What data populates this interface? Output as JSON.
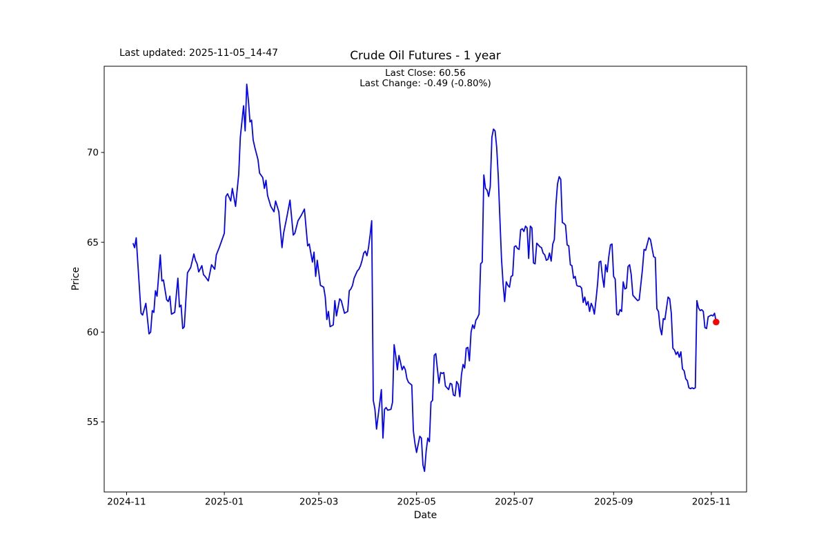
{
  "figure": {
    "last_updated_text": "Last updated: 2025-11-05_14-47",
    "title": "Crude Oil Futures - 1 year",
    "annotation_line1": "Last Close: 60.56",
    "annotation_line2": "Last Change: -0.49 (-0.80%)"
  },
  "chart_data": {
    "type": "line",
    "title": "Crude Oil Futures - 1 year",
    "xlabel": "Date",
    "ylabel": "Price",
    "last_close": 60.56,
    "last_change": -0.49,
    "last_change_pct": "-0.80%",
    "line_color": "#0000ff",
    "last_point_color": "#ff0000",
    "axis_color": "#000000",
    "grid": false,
    "legend": false,
    "x_unit": "days since 2024-11-01",
    "x_domain": [
      -14,
      387
    ],
    "y_domain": [
      51.1,
      74.8
    ],
    "x_ticks": [
      {
        "day": 0,
        "label": "2024-11"
      },
      {
        "day": 61,
        "label": "2025-01"
      },
      {
        "day": 120,
        "label": "2025-03"
      },
      {
        "day": 181,
        "label": "2025-05"
      },
      {
        "day": 242,
        "label": "2025-07"
      },
      {
        "day": 304,
        "label": "2025-09"
      },
      {
        "day": 365,
        "label": "2025-11"
      }
    ],
    "y_ticks": [
      55,
      60,
      65,
      70
    ],
    "last_point": [
      368,
      60.56
    ],
    "series": [
      {
        "name": "Crude Oil Futures",
        "color": "#0000ff",
        "points": [
          [
            4,
            64.95
          ],
          [
            5,
            64.7
          ],
          [
            6,
            65.25
          ],
          [
            9,
            61.05
          ],
          [
            10,
            60.95
          ],
          [
            12,
            61.6
          ],
          [
            14,
            59.9
          ],
          [
            15,
            60.0
          ],
          [
            16,
            61.2
          ],
          [
            17,
            61.1
          ],
          [
            18,
            62.3
          ],
          [
            19,
            62.0
          ],
          [
            21,
            64.3
          ],
          [
            22,
            62.85
          ],
          [
            23,
            62.9
          ],
          [
            25,
            61.8
          ],
          [
            26,
            61.7
          ],
          [
            27,
            62.0
          ],
          [
            28,
            61.0
          ],
          [
            30,
            61.1
          ],
          [
            32,
            63.0
          ],
          [
            33,
            61.4
          ],
          [
            34,
            61.5
          ],
          [
            35,
            60.2
          ],
          [
            36,
            60.3
          ],
          [
            38,
            63.3
          ],
          [
            40,
            63.6
          ],
          [
            42,
            64.35
          ],
          [
            43,
            64.0
          ],
          [
            44,
            63.8
          ],
          [
            45,
            63.35
          ],
          [
            47,
            63.7
          ],
          [
            48,
            63.2
          ],
          [
            49,
            63.1
          ],
          [
            51,
            62.85
          ],
          [
            53,
            63.75
          ],
          [
            55,
            63.5
          ],
          [
            56,
            64.3
          ],
          [
            58,
            64.75
          ],
          [
            59,
            65.0
          ],
          [
            61,
            65.5
          ],
          [
            62,
            67.55
          ],
          [
            63,
            67.7
          ],
          [
            65,
            67.3
          ],
          [
            66,
            68.0
          ],
          [
            68,
            67.0
          ],
          [
            70,
            68.8
          ],
          [
            71,
            70.85
          ],
          [
            73,
            72.6
          ],
          [
            74,
            71.2
          ],
          [
            75,
            73.8
          ],
          [
            76,
            72.9
          ],
          [
            77,
            71.7
          ],
          [
            78,
            71.8
          ],
          [
            79,
            70.7
          ],
          [
            80,
            70.3
          ],
          [
            82,
            69.6
          ],
          [
            83,
            68.85
          ],
          [
            85,
            68.6
          ],
          [
            86,
            68.0
          ],
          [
            87,
            68.45
          ],
          [
            88,
            67.6
          ],
          [
            90,
            67.0
          ],
          [
            92,
            66.7
          ],
          [
            93,
            67.3
          ],
          [
            95,
            66.7
          ],
          [
            97,
            64.7
          ],
          [
            98,
            65.5
          ],
          [
            100,
            66.4
          ],
          [
            102,
            67.35
          ],
          [
            104,
            65.4
          ],
          [
            105,
            65.5
          ],
          [
            107,
            66.2
          ],
          [
            109,
            66.5
          ],
          [
            111,
            66.85
          ],
          [
            113,
            64.8
          ],
          [
            114,
            64.9
          ],
          [
            116,
            63.9
          ],
          [
            117,
            64.45
          ],
          [
            118,
            63.1
          ],
          [
            119,
            64.0
          ],
          [
            121,
            62.6
          ],
          [
            123,
            62.5
          ],
          [
            124,
            61.95
          ],
          [
            125,
            60.7
          ],
          [
            126,
            61.15
          ],
          [
            127,
            60.3
          ],
          [
            129,
            60.4
          ],
          [
            130,
            61.75
          ],
          [
            131,
            60.9
          ],
          [
            133,
            61.85
          ],
          [
            134,
            61.75
          ],
          [
            136,
            61.05
          ],
          [
            138,
            61.15
          ],
          [
            139,
            62.3
          ],
          [
            140,
            62.4
          ],
          [
            141,
            62.6
          ],
          [
            142,
            63.0
          ],
          [
            144,
            63.4
          ],
          [
            145,
            63.5
          ],
          [
            146,
            63.7
          ],
          [
            147,
            64.0
          ],
          [
            148,
            64.4
          ],
          [
            149,
            64.5
          ],
          [
            150,
            64.25
          ],
          [
            151,
            64.7
          ],
          [
            152,
            65.4
          ],
          [
            153,
            66.2
          ],
          [
            154,
            56.2
          ],
          [
            155,
            55.7
          ],
          [
            156,
            54.6
          ],
          [
            159,
            56.8
          ],
          [
            160,
            54.1
          ],
          [
            161,
            55.7
          ],
          [
            162,
            55.8
          ],
          [
            163,
            55.65
          ],
          [
            165,
            55.7
          ],
          [
            166,
            56.1
          ],
          [
            167,
            59.3
          ],
          [
            168,
            58.7
          ],
          [
            169,
            57.9
          ],
          [
            170,
            58.7
          ],
          [
            172,
            57.9
          ],
          [
            173,
            58.1
          ],
          [
            174,
            57.9
          ],
          [
            175,
            57.4
          ],
          [
            176,
            57.2
          ],
          [
            178,
            57.05
          ],
          [
            179,
            54.5
          ],
          [
            180,
            53.8
          ],
          [
            181,
            53.3
          ],
          [
            183,
            54.2
          ],
          [
            184,
            54.1
          ],
          [
            185,
            52.6
          ],
          [
            186,
            52.25
          ],
          [
            187,
            53.4
          ],
          [
            188,
            54.1
          ],
          [
            189,
            53.9
          ],
          [
            190,
            56.1
          ],
          [
            191,
            56.2
          ],
          [
            192,
            58.7
          ],
          [
            193,
            58.8
          ],
          [
            194,
            57.95
          ],
          [
            195,
            57.15
          ],
          [
            196,
            57.75
          ],
          [
            197,
            57.7
          ],
          [
            198,
            57.75
          ],
          [
            199,
            57.0
          ],
          [
            200,
            56.9
          ],
          [
            201,
            56.8
          ],
          [
            202,
            57.15
          ],
          [
            203,
            57.1
          ],
          [
            204,
            56.5
          ],
          [
            205,
            56.45
          ],
          [
            206,
            57.25
          ],
          [
            207,
            57.1
          ],
          [
            208,
            56.4
          ],
          [
            209,
            57.6
          ],
          [
            210,
            58.2
          ],
          [
            211,
            58.0
          ],
          [
            212,
            59.1
          ],
          [
            213,
            59.15
          ],
          [
            214,
            58.4
          ],
          [
            215,
            60.0
          ],
          [
            216,
            60.4
          ],
          [
            217,
            60.2
          ],
          [
            218,
            60.65
          ],
          [
            219,
            60.8
          ],
          [
            220,
            61.0
          ],
          [
            221,
            63.8
          ],
          [
            222,
            63.9
          ],
          [
            223,
            68.75
          ],
          [
            224,
            68.0
          ],
          [
            225,
            67.9
          ],
          [
            226,
            67.55
          ],
          [
            227,
            68.1
          ],
          [
            228,
            70.85
          ],
          [
            229,
            71.3
          ],
          [
            230,
            71.2
          ],
          [
            231,
            70.3
          ],
          [
            232,
            68.7
          ],
          [
            233,
            66.3
          ],
          [
            234,
            64.1
          ],
          [
            235,
            62.7
          ],
          [
            236,
            61.7
          ],
          [
            237,
            62.8
          ],
          [
            238,
            62.6
          ],
          [
            239,
            62.5
          ],
          [
            240,
            63.1
          ],
          [
            241,
            63.15
          ],
          [
            242,
            64.75
          ],
          [
            243,
            64.8
          ],
          [
            244,
            64.65
          ],
          [
            245,
            64.6
          ],
          [
            246,
            65.7
          ],
          [
            247,
            65.75
          ],
          [
            248,
            65.6
          ],
          [
            249,
            65.9
          ],
          [
            250,
            65.8
          ],
          [
            251,
            64.1
          ],
          [
            252,
            65.9
          ],
          [
            253,
            65.8
          ],
          [
            254,
            63.85
          ],
          [
            255,
            63.8
          ],
          [
            256,
            64.95
          ],
          [
            257,
            64.85
          ],
          [
            258,
            64.75
          ],
          [
            259,
            64.7
          ],
          [
            260,
            64.4
          ],
          [
            261,
            64.3
          ],
          [
            262,
            64.0
          ],
          [
            263,
            64.05
          ],
          [
            264,
            64.4
          ],
          [
            265,
            63.95
          ],
          [
            266,
            64.9
          ],
          [
            267,
            65.15
          ],
          [
            268,
            67.1
          ],
          [
            269,
            68.25
          ],
          [
            270,
            68.65
          ],
          [
            271,
            68.5
          ],
          [
            272,
            66.1
          ],
          [
            273,
            66.05
          ],
          [
            274,
            65.95
          ],
          [
            275,
            64.85
          ],
          [
            276,
            64.8
          ],
          [
            277,
            63.75
          ],
          [
            278,
            63.7
          ],
          [
            279,
            63.0
          ],
          [
            280,
            63.1
          ],
          [
            281,
            62.6
          ],
          [
            282,
            62.55
          ],
          [
            283,
            62.55
          ],
          [
            284,
            62.45
          ],
          [
            285,
            61.65
          ],
          [
            286,
            61.95
          ],
          [
            287,
            61.5
          ],
          [
            288,
            61.7
          ],
          [
            289,
            61.15
          ],
          [
            290,
            61.6
          ],
          [
            291,
            61.4
          ],
          [
            292,
            61.0
          ],
          [
            293,
            61.8
          ],
          [
            294,
            62.7
          ],
          [
            295,
            63.9
          ],
          [
            296,
            63.95
          ],
          [
            297,
            63.1
          ],
          [
            298,
            62.5
          ],
          [
            299,
            63.75
          ],
          [
            300,
            63.35
          ],
          [
            301,
            64.2
          ],
          [
            302,
            64.85
          ],
          [
            303,
            64.9
          ],
          [
            304,
            63.1
          ],
          [
            305,
            62.95
          ],
          [
            306,
            61.0
          ],
          [
            307,
            60.95
          ],
          [
            308,
            61.25
          ],
          [
            309,
            61.15
          ],
          [
            310,
            62.8
          ],
          [
            311,
            62.4
          ],
          [
            312,
            62.45
          ],
          [
            313,
            63.65
          ],
          [
            314,
            63.75
          ],
          [
            315,
            63.2
          ],
          [
            316,
            62.05
          ],
          [
            317,
            61.95
          ],
          [
            318,
            61.85
          ],
          [
            319,
            61.75
          ],
          [
            320,
            61.8
          ],
          [
            322,
            63.5
          ],
          [
            323,
            64.6
          ],
          [
            324,
            64.55
          ],
          [
            326,
            65.25
          ],
          [
            327,
            65.15
          ],
          [
            329,
            64.2
          ],
          [
            330,
            64.15
          ],
          [
            331,
            61.3
          ],
          [
            332,
            61.15
          ],
          [
            333,
            60.25
          ],
          [
            334,
            59.85
          ],
          [
            335,
            60.75
          ],
          [
            336,
            60.7
          ],
          [
            338,
            61.95
          ],
          [
            339,
            61.85
          ],
          [
            340,
            61.05
          ],
          [
            341,
            59.1
          ],
          [
            342,
            59.0
          ],
          [
            343,
            58.75
          ],
          [
            344,
            58.9
          ],
          [
            345,
            58.6
          ],
          [
            346,
            58.9
          ],
          [
            347,
            57.95
          ],
          [
            348,
            57.85
          ],
          [
            349,
            57.4
          ],
          [
            350,
            57.3
          ],
          [
            351,
            56.9
          ],
          [
            352,
            56.85
          ],
          [
            353,
            56.9
          ],
          [
            354,
            56.85
          ],
          [
            355,
            56.9
          ],
          [
            356,
            61.75
          ],
          [
            357,
            61.35
          ],
          [
            358,
            61.2
          ],
          [
            359,
            61.25
          ],
          [
            360,
            61.15
          ],
          [
            361,
            60.25
          ],
          [
            362,
            60.2
          ],
          [
            363,
            60.85
          ],
          [
            364,
            60.9
          ],
          [
            365,
            60.95
          ],
          [
            366,
            60.9
          ],
          [
            367,
            61.05
          ],
          [
            368,
            60.56
          ]
        ]
      }
    ]
  }
}
